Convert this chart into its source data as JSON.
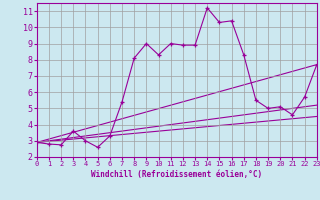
{
  "xlabel": "Windchill (Refroidissement éolien,°C)",
  "background_color": "#cce8f0",
  "grid_color": "#a0a0a0",
  "line_color": "#990099",
  "xlim": [
    0,
    23
  ],
  "ylim": [
    2,
    11.5
  ],
  "xticks": [
    0,
    1,
    2,
    3,
    4,
    5,
    6,
    7,
    8,
    9,
    10,
    11,
    12,
    13,
    14,
    15,
    16,
    17,
    18,
    19,
    20,
    21,
    22,
    23
  ],
  "yticks": [
    2,
    3,
    4,
    5,
    6,
    7,
    8,
    9,
    10,
    11
  ],
  "series1_x": [
    0,
    1,
    2,
    3,
    4,
    5,
    6,
    7,
    8,
    9,
    10,
    11,
    12,
    13,
    14,
    15,
    16,
    17,
    18,
    19,
    20,
    21,
    22,
    23
  ],
  "series1_y": [
    2.9,
    2.8,
    2.75,
    3.6,
    3.0,
    2.6,
    3.3,
    5.4,
    8.1,
    9.0,
    8.3,
    9.0,
    8.9,
    8.9,
    11.2,
    10.3,
    10.4,
    8.3,
    5.5,
    5.0,
    5.1,
    4.6,
    5.7,
    7.7
  ],
  "series2_x": [
    0,
    23
  ],
  "series2_y": [
    2.9,
    7.7
  ],
  "series3_x": [
    0,
    23
  ],
  "series3_y": [
    2.9,
    5.2
  ],
  "series4_x": [
    0,
    23
  ],
  "series4_y": [
    2.9,
    4.5
  ]
}
